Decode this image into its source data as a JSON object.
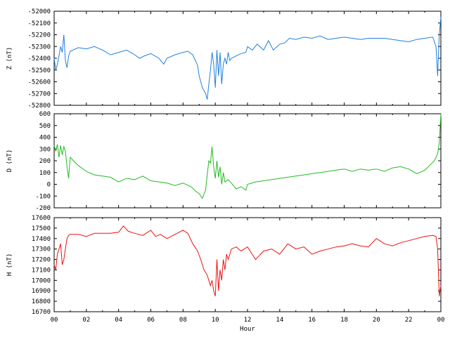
{
  "chart_data": [
    {
      "type": "line",
      "ylabel": "Z (nT)",
      "ylim": [
        -52800,
        -52000
      ],
      "yticks": [
        -52000,
        -52100,
        -52200,
        -52300,
        -52400,
        -52500,
        -52600,
        -52700,
        -52800
      ],
      "xlim": [
        0,
        24
      ],
      "color": "#1f7fe0",
      "x": [
        0,
        0.1,
        0.2,
        0.3,
        0.4,
        0.5,
        0.6,
        0.7,
        0.8,
        0.9,
        1.0,
        1.5,
        2.0,
        2.5,
        3.0,
        3.5,
        4.0,
        4.5,
        5.0,
        5.3,
        5.6,
        6.0,
        6.5,
        6.8,
        7.0,
        7.5,
        8.0,
        8.3,
        8.6,
        8.9,
        9.0,
        9.2,
        9.4,
        9.5,
        9.6,
        9.7,
        9.8,
        9.9,
        10.0,
        10.1,
        10.2,
        10.3,
        10.4,
        10.5,
        10.6,
        10.7,
        10.8,
        10.9,
        11.0,
        11.3,
        11.6,
        11.9,
        12.0,
        12.3,
        12.6,
        13.0,
        13.3,
        13.6,
        14.0,
        14.3,
        14.6,
        15.0,
        15.5,
        16.0,
        16.5,
        17.0,
        17.5,
        18.0,
        18.5,
        19.0,
        19.5,
        20.0,
        20.5,
        21.0,
        21.5,
        22.0,
        22.5,
        23.0,
        23.5,
        23.7,
        23.8,
        23.9,
        24.0
      ],
      "values": [
        -52400,
        -52500,
        -52450,
        -52380,
        -52300,
        -52350,
        -52200,
        -52420,
        -52480,
        -52380,
        -52340,
        -52310,
        -52320,
        -52300,
        -52330,
        -52370,
        -52350,
        -52330,
        -52370,
        -52400,
        -52380,
        -52360,
        -52400,
        -52450,
        -52400,
        -52370,
        -52350,
        -52340,
        -52370,
        -52460,
        -52550,
        -52650,
        -52700,
        -52750,
        -52620,
        -52500,
        -52350,
        -52450,
        -52650,
        -52330,
        -52550,
        -52350,
        -52620,
        -52450,
        -52400,
        -52450,
        -52350,
        -52420,
        -52400,
        -52380,
        -52360,
        -52350,
        -52300,
        -52330,
        -52280,
        -52330,
        -52250,
        -52330,
        -52280,
        -52270,
        -52230,
        -52240,
        -52220,
        -52230,
        -52210,
        -52240,
        -52230,
        -52220,
        -52230,
        -52240,
        -52230,
        -52230,
        -52230,
        -52240,
        -52250,
        -52260,
        -52240,
        -52230,
        -52220,
        -52300,
        -52550,
        -52200,
        -52050
      ]
    },
    {
      "type": "line",
      "ylabel": "D (nT)",
      "ylim": [
        -200,
        600
      ],
      "yticks": [
        600,
        500,
        400,
        300,
        200,
        100,
        0,
        -100,
        -200
      ],
      "xlim": [
        0,
        24
      ],
      "color": "#22bb22",
      "x": [
        0,
        0.1,
        0.2,
        0.3,
        0.4,
        0.5,
        0.6,
        0.7,
        0.8,
        0.9,
        1.0,
        1.2,
        1.5,
        2.0,
        2.5,
        3.0,
        3.5,
        4.0,
        4.5,
        5.0,
        5.5,
        6.0,
        6.5,
        7.0,
        7.5,
        8.0,
        8.5,
        8.8,
        9.0,
        9.2,
        9.4,
        9.5,
        9.6,
        9.7,
        9.8,
        9.9,
        10.0,
        10.1,
        10.2,
        10.3,
        10.4,
        10.5,
        10.6,
        10.8,
        11.0,
        11.3,
        11.6,
        11.9,
        12.0,
        12.5,
        13.0,
        13.5,
        14.0,
        14.5,
        15.0,
        15.5,
        16.0,
        16.5,
        17.0,
        17.5,
        18.0,
        18.5,
        19.0,
        19.5,
        20.0,
        20.5,
        21.0,
        21.5,
        22.0,
        22.5,
        23.0,
        23.3,
        23.6,
        23.8,
        23.9,
        24.0
      ],
      "values": [
        330,
        280,
        340,
        230,
        330,
        250,
        320,
        280,
        150,
        50,
        230,
        200,
        160,
        110,
        80,
        70,
        60,
        20,
        50,
        40,
        70,
        30,
        20,
        10,
        -10,
        10,
        -20,
        -60,
        -80,
        -120,
        -50,
        80,
        200,
        180,
        320,
        150,
        50,
        200,
        60,
        150,
        0,
        100,
        20,
        40,
        10,
        -40,
        -20,
        -50,
        0,
        20,
        30,
        40,
        50,
        60,
        70,
        80,
        90,
        100,
        110,
        120,
        130,
        110,
        130,
        120,
        130,
        110,
        140,
        150,
        130,
        90,
        120,
        160,
        200,
        260,
        350,
        600
      ]
    },
    {
      "type": "line",
      "ylabel": "H (nT)",
      "ylim": [
        16700,
        17600
      ],
      "yticks": [
        17600,
        17500,
        17400,
        17300,
        17200,
        17100,
        17000,
        16900,
        16800,
        16700
      ],
      "xlim": [
        0,
        24
      ],
      "xticks": [
        "00",
        "02",
        "04",
        "06",
        "08",
        "10",
        "12",
        "14",
        "16",
        "18",
        "20",
        "22",
        "00"
      ],
      "xlabel": "Hour",
      "color": "#ee1111",
      "x": [
        0,
        0.1,
        0.2,
        0.3,
        0.4,
        0.5,
        0.6,
        0.7,
        0.8,
        0.9,
        1.0,
        1.5,
        2.0,
        2.5,
        3.0,
        3.5,
        4.0,
        4.3,
        4.6,
        5.0,
        5.5,
        6.0,
        6.3,
        6.6,
        7.0,
        7.5,
        8.0,
        8.3,
        8.6,
        8.9,
        9.1,
        9.3,
        9.5,
        9.6,
        9.7,
        9.8,
        9.9,
        10.0,
        10.1,
        10.2,
        10.3,
        10.4,
        10.5,
        10.6,
        10.7,
        10.8,
        11.0,
        11.3,
        11.6,
        12.0,
        12.5,
        13.0,
        13.5,
        14.0,
        14.5,
        15.0,
        15.5,
        16.0,
        16.5,
        17.0,
        17.5,
        18.0,
        18.5,
        19.0,
        19.5,
        20.0,
        20.5,
        21.0,
        21.5,
        22.0,
        22.5,
        23.0,
        23.5,
        23.7,
        23.8,
        23.9,
        24.0
      ],
      "values": [
        17150,
        17100,
        17250,
        17300,
        17350,
        17150,
        17200,
        17300,
        17400,
        17430,
        17440,
        17440,
        17420,
        17450,
        17450,
        17450,
        17460,
        17520,
        17470,
        17450,
        17430,
        17480,
        17420,
        17440,
        17400,
        17440,
        17480,
        17450,
        17350,
        17280,
        17200,
        17100,
        17050,
        17000,
        16950,
        17000,
        16900,
        16850,
        17200,
        16900,
        17100,
        17000,
        17200,
        17100,
        17250,
        17200,
        17300,
        17320,
        17280,
        17320,
        17200,
        17280,
        17300,
        17250,
        17350,
        17300,
        17320,
        17250,
        17280,
        17300,
        17320,
        17330,
        17350,
        17330,
        17320,
        17400,
        17350,
        17330,
        17360,
        17380,
        17400,
        17420,
        17430,
        17420,
        17300,
        16850,
        16950
      ]
    }
  ]
}
